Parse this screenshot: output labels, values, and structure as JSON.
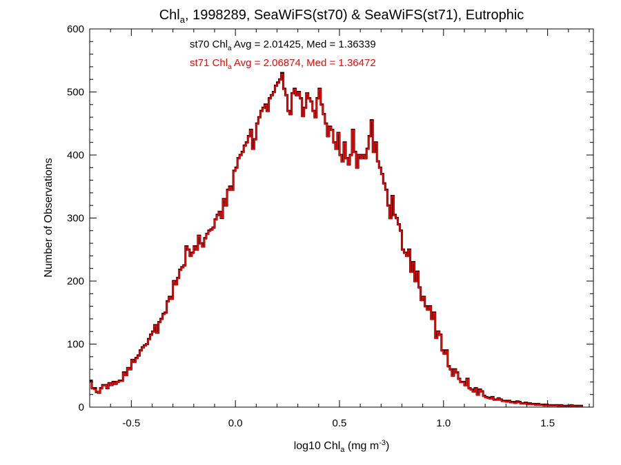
{
  "chart_data": {
    "type": "histogram",
    "title": {
      "main": "Chl",
      "sub": "a",
      "rest": ", 1998289, SeaWiFS(st70) & SeaWiFS(st71), Eutrophic"
    },
    "xlabel": {
      "main": "log10 Chl",
      "sub": "a",
      "mid": " (mg m",
      "sup": "-3",
      "end": ")"
    },
    "ylabel": "Number of Observations",
    "xlim": [
      -0.7,
      1.72
    ],
    "ylim": [
      0,
      600
    ],
    "xticks": [
      -0.5,
      0.0,
      0.5,
      1.0,
      1.5
    ],
    "xtick_labels": [
      "-0.5",
      "0.0",
      "0.5",
      "1.0",
      "1.5"
    ],
    "yticks": [
      0,
      100,
      200,
      300,
      400,
      500,
      600
    ],
    "ytick_labels": [
      "0",
      "100",
      "200",
      "300",
      "400",
      "500",
      "600"
    ],
    "grid": false,
    "annotations": [
      {
        "pre": "st70 Chl",
        "sub": "a",
        "post": " Avg = 2.01425, Med = 1.36339",
        "color": "#000000"
      },
      {
        "pre": "st71 Chl",
        "sub": "a",
        "post": " Avg = 2.06874, Med = 1.36472",
        "color": "#ff0000"
      }
    ],
    "bin_width": 0.01,
    "series": [
      {
        "name": "st70",
        "color": "#000000",
        "x_start": -0.7,
        "values": [
          42,
          30,
          30,
          24,
          23,
          30,
          35,
          35,
          30,
          38,
          35,
          40,
          37,
          40,
          42,
          42,
          55,
          51,
          62,
          60,
          75,
          72,
          78,
          82,
          90,
          95,
          98,
          100,
          108,
          115,
          120,
          130,
          118,
          135,
          140,
          148,
          150,
          168,
          175,
          172,
          200,
          195,
          205,
          218,
          222,
          225,
          255,
          250,
          240,
          245,
          255,
          250,
          272,
          260,
          255,
          268,
          275,
          280,
          282,
          285,
          298,
          305,
          310,
          300,
          330,
          320,
          345,
          350,
          345,
          375,
          380,
          395,
          400,
          405,
          415,
          420,
          430,
          440,
          410,
          425,
          450,
          460,
          470,
          475,
          480,
          470,
          490,
          495,
          500,
          510,
          515,
          520,
          530,
          505,
          495,
          470,
          465,
          498,
          505,
          495,
          500,
          490,
          462,
          475,
          498,
          490,
          485,
          470,
          460,
          490,
          505,
          480,
          465,
          450,
          430,
          445,
          440,
          420,
          410,
          435,
          400,
          390,
          420,
          395,
          385,
          400,
          440,
          405,
          380,
          400,
          395,
          400,
          395,
          410,
          430,
          455,
          405,
          420,
          390,
          380,
          370,
          355,
          345,
          320,
          300,
          335,
          305,
          300,
          290,
          280,
          250,
          245,
          240,
          250,
          215,
          230,
          200,
          215,
          190,
          170,
          175,
          160,
          155,
          160,
          140,
          150,
          110,
          120,
          115,
          90,
          85,
          90,
          65,
          60,
          50,
          60,
          55,
          45,
          40,
          40,
          35,
          45,
          30,
          28,
          25,
          30,
          20,
          28,
          25,
          18,
          16,
          15,
          14,
          16,
          12,
          12,
          14,
          12,
          10,
          10,
          9,
          10,
          8,
          8,
          7,
          9,
          8,
          6,
          6,
          7,
          5,
          6,
          5,
          5,
          4,
          5,
          4,
          4,
          3,
          4,
          3,
          3,
          3,
          3,
          3,
          2,
          3,
          2,
          2,
          2,
          2,
          3,
          2,
          2,
          2,
          2,
          2
        ]
      },
      {
        "name": "st71",
        "color": "#ff0000",
        "x_start": -0.7,
        "values": [
          40,
          29,
          28,
          25,
          22,
          29,
          34,
          34,
          30,
          37,
          35,
          39,
          36,
          40,
          41,
          41,
          54,
          50,
          61,
          60,
          74,
          71,
          77,
          81,
          89,
          94,
          97,
          100,
          107,
          114,
          119,
          129,
          118,
          134,
          139,
          147,
          149,
          167,
          174,
          171,
          199,
          194,
          204,
          217,
          221,
          224,
          254,
          249,
          239,
          244,
          254,
          249,
          271,
          259,
          254,
          267,
          274,
          279,
          281,
          284,
          297,
          304,
          309,
          300,
          329,
          319,
          344,
          349,
          344,
          374,
          379,
          394,
          399,
          404,
          414,
          419,
          429,
          439,
          409,
          424,
          449,
          459,
          469,
          474,
          479,
          469,
          489,
          494,
          499,
          509,
          514,
          519,
          528,
          504,
          494,
          469,
          464,
          497,
          504,
          494,
          499,
          489,
          461,
          474,
          497,
          489,
          484,
          469,
          459,
          489,
          504,
          479,
          464,
          449,
          429,
          444,
          439,
          419,
          409,
          434,
          399,
          389,
          419,
          394,
          384,
          399,
          439,
          404,
          379,
          399,
          394,
          399,
          394,
          409,
          429,
          454,
          404,
          419,
          389,
          379,
          369,
          354,
          344,
          319,
          299,
          334,
          304,
          299,
          289,
          279,
          249,
          244,
          239,
          249,
          214,
          229,
          199,
          214,
          189,
          169,
          174,
          159,
          154,
          159,
          139,
          149,
          109,
          119,
          114,
          89,
          84,
          89,
          64,
          59,
          49,
          59,
          54,
          44,
          39,
          39,
          34,
          44,
          29,
          27,
          24,
          29,
          19,
          27,
          24,
          17,
          15,
          14,
          13,
          15,
          11,
          11,
          13,
          11,
          9,
          9,
          8,
          9,
          7,
          7,
          6,
          8,
          7,
          5,
          5,
          6,
          4,
          5,
          4,
          4,
          3,
          4,
          3,
          3,
          2,
          3,
          2,
          2,
          2,
          2,
          2,
          1,
          2,
          1,
          1,
          1,
          1,
          2,
          1,
          1,
          1,
          1,
          1
        ]
      }
    ]
  }
}
